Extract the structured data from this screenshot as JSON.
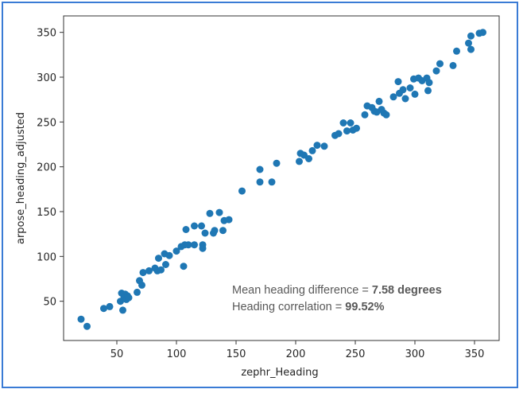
{
  "chart_data": {
    "type": "scatter",
    "title": "",
    "xlabel": "zephr_Heading",
    "ylabel": "arpose_heading_adjusted",
    "xlim": [
      5,
      370
    ],
    "ylim": [
      10,
      365
    ],
    "xticks": [
      50,
      100,
      150,
      200,
      250,
      300,
      350
    ],
    "yticks": [
      50,
      100,
      150,
      200,
      250,
      300,
      350
    ],
    "grid": false,
    "marker_color": "#1f77b4",
    "annotations": [
      {
        "text": "Mean heading difference = ",
        "bold": "7.58 degrees"
      },
      {
        "text": "Heading correlation = ",
        "bold": "99.52%"
      }
    ],
    "points": [
      [
        20,
        30
      ],
      [
        25,
        22
      ],
      [
        39,
        42
      ],
      [
        44,
        44
      ],
      [
        53,
        50
      ],
      [
        54,
        59
      ],
      [
        55,
        40
      ],
      [
        56,
        54
      ],
      [
        57,
        58
      ],
      [
        58,
        52
      ],
      [
        59,
        56
      ],
      [
        60,
        54
      ],
      [
        67,
        60
      ],
      [
        69,
        73
      ],
      [
        71,
        68
      ],
      [
        72,
        82
      ],
      [
        77,
        84
      ],
      [
        82,
        87
      ],
      [
        84,
        84
      ],
      [
        85,
        98
      ],
      [
        87,
        85
      ],
      [
        90,
        103
      ],
      [
        91,
        91
      ],
      [
        94,
        101
      ],
      [
        100,
        106
      ],
      [
        104,
        111
      ],
      [
        106,
        89
      ],
      [
        107,
        113
      ],
      [
        108,
        130
      ],
      [
        110,
        113
      ],
      [
        115,
        134
      ],
      [
        115,
        113
      ],
      [
        121,
        134
      ],
      [
        122,
        113
      ],
      [
        122,
        109
      ],
      [
        124,
        126
      ],
      [
        128,
        148
      ],
      [
        131,
        126
      ],
      [
        132,
        129
      ],
      [
        136,
        149
      ],
      [
        139,
        129
      ],
      [
        140,
        140
      ],
      [
        144,
        141
      ],
      [
        155,
        173
      ],
      [
        170,
        197
      ],
      [
        170,
        183
      ],
      [
        180,
        183
      ],
      [
        184,
        204
      ],
      [
        203,
        206
      ],
      [
        204,
        215
      ],
      [
        207,
        213
      ],
      [
        211,
        209
      ],
      [
        214,
        218
      ],
      [
        218,
        224
      ],
      [
        224,
        223
      ],
      [
        233,
        235
      ],
      [
        236,
        237
      ],
      [
        240,
        249
      ],
      [
        243,
        240
      ],
      [
        246,
        249
      ],
      [
        248,
        241
      ],
      [
        251,
        243
      ],
      [
        258,
        258
      ],
      [
        260,
        268
      ],
      [
        264,
        266
      ],
      [
        266,
        262
      ],
      [
        268,
        261
      ],
      [
        270,
        273
      ],
      [
        272,
        264
      ],
      [
        274,
        260
      ],
      [
        276,
        258
      ],
      [
        282,
        278
      ],
      [
        286,
        295
      ],
      [
        287,
        282
      ],
      [
        290,
        286
      ],
      [
        292,
        276
      ],
      [
        296,
        288
      ],
      [
        299,
        298
      ],
      [
        300,
        281
      ],
      [
        303,
        299
      ],
      [
        306,
        296
      ],
      [
        310,
        299
      ],
      [
        311,
        285
      ],
      [
        312,
        294
      ],
      [
        318,
        307
      ],
      [
        321,
        315
      ],
      [
        332,
        313
      ],
      [
        335,
        329
      ],
      [
        345,
        338
      ],
      [
        347,
        346
      ],
      [
        347,
        331
      ],
      [
        354,
        349
      ],
      [
        357,
        350
      ]
    ]
  }
}
